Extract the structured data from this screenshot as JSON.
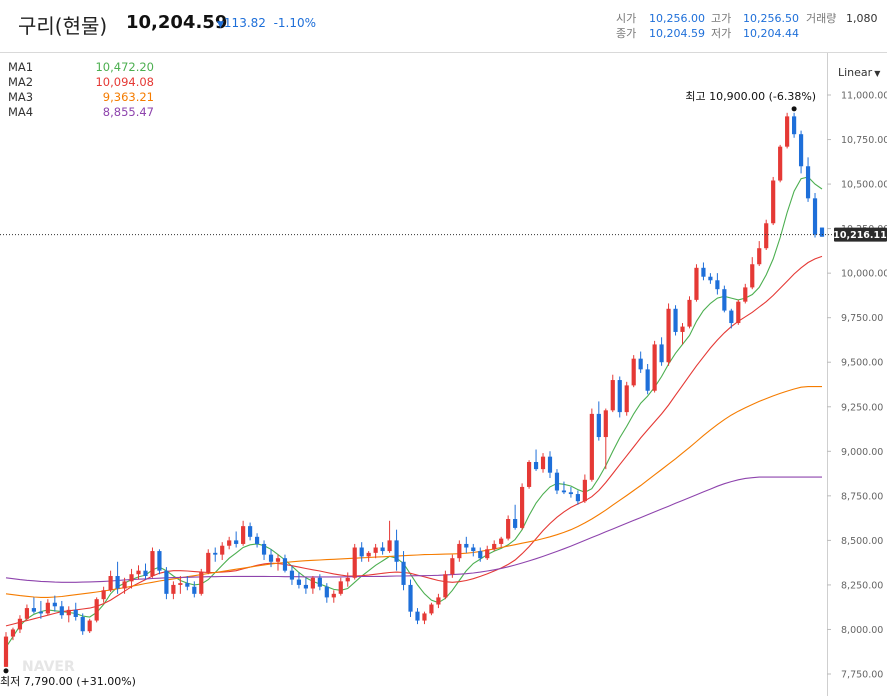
{
  "header": {
    "title": "구리(현물)",
    "price": "10,204.59",
    "change_arrow": "▼",
    "change": "113.82",
    "change_pct": "-1.10%",
    "open_label": "시가",
    "open": "10,256.00",
    "high_label": "고가",
    "high": "10,256.50",
    "volume_label": "거래량",
    "volume": "1,080",
    "close_label": "종가",
    "close": "10,204.59",
    "low_label": "저가",
    "low": "10,204.44"
  },
  "ma_legend": [
    {
      "label": "MA1",
      "value": "10,472.20",
      "color": "#4caf50"
    },
    {
      "label": "MA2",
      "value": "10,094.08",
      "color": "#e53935"
    },
    {
      "label": "MA3",
      "value": "9,363.21",
      "color": "#f57c00"
    },
    {
      "label": "MA4",
      "value": "8,855.47",
      "color": "#8e44ad"
    }
  ],
  "scale_mode": "Linear",
  "annotations": {
    "high": "최고 10,900.00 (-6.38%)",
    "low": "최저 7,790.00 (+31.00%)",
    "current_tag": "10,216.11",
    "watermark": "NAVER"
  },
  "colors": {
    "up": "#e53935",
    "down": "#1e6fd9"
  },
  "chart_data": {
    "type": "candlestick",
    "ylim": [
      7700,
      11150
    ],
    "y_ticks": [
      "7,750.00",
      "8,000.00",
      "8,250.00",
      "8,500.00",
      "8,750.00",
      "9,000.00",
      "9,250.00",
      "9,500.00",
      "9,750.00",
      "10,000.00",
      "10,250.00",
      "10,500.00",
      "10,750.00",
      "11,000.00"
    ],
    "y_tick_values": [
      7750,
      8000,
      8250,
      8500,
      8750,
      9000,
      9250,
      9500,
      9750,
      10000,
      10250,
      10500,
      10750,
      11000
    ],
    "current_value": 10216.11,
    "candles": [
      [
        7790,
        7985,
        7790,
        7960
      ],
      [
        7960,
        8010,
        7940,
        8000
      ],
      [
        8000,
        8080,
        7980,
        8060
      ],
      [
        8060,
        8140,
        8050,
        8120
      ],
      [
        8120,
        8180,
        8090,
        8100
      ],
      [
        8100,
        8160,
        8060,
        8090
      ],
      [
        8090,
        8170,
        8080,
        8150
      ],
      [
        8150,
        8190,
        8100,
        8130
      ],
      [
        8130,
        8160,
        8060,
        8080
      ],
      [
        8080,
        8130,
        8040,
        8110
      ],
      [
        8110,
        8150,
        8050,
        8070
      ],
      [
        8070,
        8090,
        7970,
        7990
      ],
      [
        7990,
        8060,
        7980,
        8050
      ],
      [
        8050,
        8180,
        8040,
        8170
      ],
      [
        8170,
        8240,
        8150,
        8220
      ],
      [
        8220,
        8330,
        8210,
        8300
      ],
      [
        8300,
        8380,
        8200,
        8230
      ],
      [
        8230,
        8290,
        8200,
        8270
      ],
      [
        8270,
        8340,
        8230,
        8310
      ],
      [
        8310,
        8360,
        8280,
        8330
      ],
      [
        8330,
        8370,
        8280,
        8300
      ],
      [
        8300,
        8460,
        8290,
        8440
      ],
      [
        8440,
        8450,
        8310,
        8330
      ],
      [
        8330,
        8350,
        8170,
        8200
      ],
      [
        8200,
        8270,
        8170,
        8250
      ],
      [
        8250,
        8300,
        8200,
        8260
      ],
      [
        8260,
        8300,
        8220,
        8240
      ],
      [
        8240,
        8270,
        8180,
        8200
      ],
      [
        8200,
        8340,
        8190,
        8320
      ],
      [
        8320,
        8450,
        8310,
        8430
      ],
      [
        8430,
        8460,
        8380,
        8420
      ],
      [
        8420,
        8490,
        8390,
        8470
      ],
      [
        8470,
        8520,
        8450,
        8500
      ],
      [
        8500,
        8550,
        8460,
        8480
      ],
      [
        8480,
        8610,
        8470,
        8580
      ],
      [
        8580,
        8600,
        8500,
        8520
      ],
      [
        8520,
        8540,
        8460,
        8480
      ],
      [
        8480,
        8500,
        8390,
        8420
      ],
      [
        8420,
        8450,
        8350,
        8380
      ],
      [
        8380,
        8420,
        8330,
        8400
      ],
      [
        8400,
        8420,
        8320,
        8330
      ],
      [
        8330,
        8360,
        8250,
        8280
      ],
      [
        8280,
        8320,
        8230,
        8250
      ],
      [
        8250,
        8290,
        8200,
        8230
      ],
      [
        8230,
        8300,
        8200,
        8290
      ],
      [
        8290,
        8310,
        8220,
        8240
      ],
      [
        8240,
        8260,
        8150,
        8180
      ],
      [
        8180,
        8220,
        8150,
        8200
      ],
      [
        8200,
        8290,
        8190,
        8270
      ],
      [
        8270,
        8320,
        8240,
        8290
      ],
      [
        8290,
        8480,
        8280,
        8460
      ],
      [
        8460,
        8490,
        8380,
        8410
      ],
      [
        8410,
        8440,
        8380,
        8430
      ],
      [
        8430,
        8480,
        8400,
        8460
      ],
      [
        8460,
        8490,
        8420,
        8440
      ],
      [
        8440,
        8610,
        8430,
        8500
      ],
      [
        8500,
        8560,
        8330,
        8380
      ],
      [
        8380,
        8440,
        8220,
        8250
      ],
      [
        8250,
        8280,
        8070,
        8100
      ],
      [
        8100,
        8120,
        8030,
        8050
      ],
      [
        8050,
        8100,
        8030,
        8090
      ],
      [
        8090,
        8150,
        8080,
        8140
      ],
      [
        8140,
        8200,
        8120,
        8180
      ],
      [
        8180,
        8330,
        8170,
        8310
      ],
      [
        8310,
        8420,
        8290,
        8400
      ],
      [
        8400,
        8500,
        8380,
        8480
      ],
      [
        8480,
        8520,
        8430,
        8460
      ],
      [
        8460,
        8480,
        8410,
        8440
      ],
      [
        8440,
        8460,
        8380,
        8400
      ],
      [
        8400,
        8470,
        8390,
        8450
      ],
      [
        8450,
        8500,
        8440,
        8480
      ],
      [
        8480,
        8520,
        8460,
        8510
      ],
      [
        8510,
        8640,
        8500,
        8620
      ],
      [
        8620,
        8700,
        8560,
        8570
      ],
      [
        8570,
        8820,
        8560,
        8800
      ],
      [
        8800,
        8950,
        8790,
        8940
      ],
      [
        8940,
        9010,
        8890,
        8900
      ],
      [
        8900,
        8990,
        8880,
        8970
      ],
      [
        8970,
        9000,
        8850,
        8880
      ],
      [
        8880,
        8900,
        8760,
        8780
      ],
      [
        8780,
        8830,
        8760,
        8770
      ],
      [
        8770,
        8800,
        8740,
        8760
      ],
      [
        8760,
        8780,
        8700,
        8720
      ],
      [
        8720,
        8870,
        8710,
        8840
      ],
      [
        8840,
        9240,
        8830,
        9210
      ],
      [
        9210,
        9280,
        9060,
        9080
      ],
      [
        9080,
        9240,
        8900,
        9230
      ],
      [
        9230,
        9430,
        9220,
        9400
      ],
      [
        9400,
        9420,
        9190,
        9220
      ],
      [
        9220,
        9390,
        9200,
        9370
      ],
      [
        9370,
        9540,
        9360,
        9520
      ],
      [
        9520,
        9560,
        9440,
        9460
      ],
      [
        9460,
        9490,
        9320,
        9340
      ],
      [
        9340,
        9620,
        9330,
        9600
      ],
      [
        9600,
        9640,
        9480,
        9500
      ],
      [
        9500,
        9830,
        9480,
        9800
      ],
      [
        9800,
        9820,
        9650,
        9670
      ],
      [
        9670,
        9720,
        9600,
        9700
      ],
      [
        9700,
        9870,
        9690,
        9850
      ],
      [
        9850,
        10050,
        9840,
        10030
      ],
      [
        10030,
        10060,
        9960,
        9980
      ],
      [
        9980,
        10000,
        9940,
        9960
      ],
      [
        9960,
        10000,
        9880,
        9910
      ],
      [
        9910,
        9930,
        9780,
        9790
      ],
      [
        9790,
        9800,
        9690,
        9720
      ],
      [
        9720,
        9850,
        9710,
        9840
      ],
      [
        9840,
        9940,
        9830,
        9920
      ],
      [
        9920,
        10090,
        9910,
        10050
      ],
      [
        10050,
        10180,
        10040,
        10140
      ],
      [
        10140,
        10300,
        10130,
        10280
      ],
      [
        10280,
        10540,
        10270,
        10520
      ],
      [
        10520,
        10720,
        10510,
        10710
      ],
      [
        10710,
        10900,
        10700,
        10880
      ],
      [
        10880,
        10900,
        10760,
        10780
      ],
      [
        10780,
        10800,
        10560,
        10600
      ],
      [
        10600,
        10650,
        10400,
        10420
      ],
      [
        10420,
        10450,
        10200,
        10216.11
      ],
      [
        10256,
        10256.5,
        10204.44,
        10204.59
      ]
    ],
    "ma_series": {
      "MA1": [
        7900,
        7960,
        8020,
        8060,
        8085,
        8100,
        8110,
        8105,
        8100,
        8095,
        8090,
        8075,
        8070,
        8095,
        8140,
        8200,
        8240,
        8260,
        8280,
        8295,
        8305,
        8335,
        8350,
        8330,
        8300,
        8275,
        8260,
        8250,
        8255,
        8280,
        8320,
        8360,
        8400,
        8430,
        8460,
        8475,
        8480,
        8470,
        8450,
        8420,
        8390,
        8355,
        8320,
        8290,
        8270,
        8255,
        8240,
        8225,
        8220,
        8230,
        8265,
        8300,
        8330,
        8360,
        8385,
        8410,
        8400,
        8370,
        8310,
        8250,
        8200,
        8165,
        8150,
        8175,
        8220,
        8275,
        8330,
        8370,
        8395,
        8420,
        8440,
        8455,
        8475,
        8505,
        8560,
        8640,
        8710,
        8760,
        8800,
        8820,
        8815,
        8805,
        8785,
        8770,
        8790,
        8850,
        8920,
        9000,
        9075,
        9140,
        9210,
        9270,
        9310,
        9360,
        9420,
        9490,
        9550,
        9600,
        9650,
        9730,
        9790,
        9830,
        9860,
        9870,
        9860,
        9850,
        9860,
        9880,
        9920,
        9990,
        10080,
        10200,
        10340,
        10460,
        10530,
        10540,
        10500,
        10472.2
      ],
      "MA2": [
        8020,
        8030,
        8040,
        8050,
        8060,
        8070,
        8080,
        8090,
        8100,
        8105,
        8110,
        8115,
        8120,
        8130,
        8145,
        8165,
        8190,
        8215,
        8240,
        8260,
        8280,
        8300,
        8315,
        8325,
        8330,
        8330,
        8328,
        8325,
        8322,
        8320,
        8320,
        8322,
        8325,
        8330,
        8340,
        8350,
        8360,
        8368,
        8372,
        8370,
        8365,
        8358,
        8350,
        8342,
        8335,
        8328,
        8320,
        8312,
        8305,
        8300,
        8300,
        8302,
        8305,
        8310,
        8315,
        8320,
        8322,
        8320,
        8315,
        8305,
        8295,
        8285,
        8275,
        8268,
        8265,
        8268,
        8275,
        8285,
        8298,
        8312,
        8328,
        8345,
        8365,
        8390,
        8425,
        8465,
        8510,
        8555,
        8595,
        8630,
        8660,
        8685,
        8705,
        8722,
        8745,
        8780,
        8825,
        8875,
        8925,
        8975,
        9025,
        9075,
        9120,
        9165,
        9210,
        9260,
        9315,
        9370,
        9425,
        9480,
        9530,
        9580,
        9625,
        9665,
        9700,
        9730,
        9755,
        9780,
        9810,
        9840,
        9875,
        9915,
        9955,
        9995,
        10030,
        10060,
        10080,
        10094.08
      ],
      "MA3": [
        8200,
        8195,
        8190,
        8186,
        8182,
        8180,
        8180,
        8182,
        8185,
        8190,
        8195,
        8200,
        8205,
        8210,
        8216,
        8222,
        8228,
        8235,
        8242,
        8250,
        8258,
        8265,
        8272,
        8278,
        8284,
        8290,
        8296,
        8302,
        8308,
        8314,
        8320,
        8326,
        8332,
        8338,
        8344,
        8350,
        8356,
        8362,
        8368,
        8372,
        8376,
        8380,
        8383,
        8386,
        8388,
        8390,
        8392,
        8394,
        8396,
        8398,
        8400,
        8402,
        8404,
        8406,
        8408,
        8410,
        8412,
        8414,
        8416,
        8418,
        8420,
        8421,
        8422,
        8423,
        8424,
        8425,
        8428,
        8432,
        8438,
        8445,
        8452,
        8460,
        8468,
        8476,
        8484,
        8492,
        8500,
        8510,
        8520,
        8532,
        8545,
        8560,
        8578,
        8598,
        8620,
        8645,
        8670,
        8698,
        8725,
        8752,
        8780,
        8808,
        8838,
        8868,
        8898,
        8928,
        8958,
        8990,
        9022,
        9055,
        9088,
        9120,
        9150,
        9178,
        9203,
        9225,
        9245,
        9263,
        9280,
        9296,
        9311,
        9325,
        9338,
        9350,
        9360,
        9363.21,
        9363.21,
        9363.21
      ],
      "MA4": [
        8290,
        8285,
        8280,
        8276,
        8273,
        8270,
        8268,
        8266,
        8265,
        8265,
        8265,
        8266,
        8267,
        8268,
        8270,
        8272,
        8275,
        8278,
        8280,
        8282,
        8284,
        8286,
        8288,
        8290,
        8291,
        8292,
        8293,
        8294,
        8295,
        8296,
        8296,
        8297,
        8297,
        8298,
        8298,
        8298,
        8298,
        8298,
        8297,
        8297,
        8296,
        8296,
        8296,
        8295,
        8295,
        8295,
        8295,
        8295,
        8295,
        8296,
        8296,
        8297,
        8297,
        8298,
        8298,
        8299,
        8300,
        8300,
        8301,
        8302,
        8302,
        8303,
        8304,
        8306,
        8308,
        8310,
        8313,
        8317,
        8322,
        8328,
        8335,
        8343,
        8352,
        8362,
        8373,
        8385,
        8397,
        8410,
        8424,
        8438,
        8453,
        8468,
        8484,
        8500,
        8516,
        8532,
        8548,
        8564,
        8580,
        8596,
        8612,
        8628,
        8644,
        8660,
        8676,
        8692,
        8708,
        8724,
        8740,
        8756,
        8772,
        8788,
        8804,
        8818,
        8830,
        8840,
        8848,
        8852,
        8855,
        8855.47,
        8855.47,
        8855.47,
        8855.47,
        8855.47,
        8855.47,
        8855.47,
        8855.47,
        8855.47
      ]
    },
    "high_marker": 10900,
    "low_marker": 7790
  }
}
